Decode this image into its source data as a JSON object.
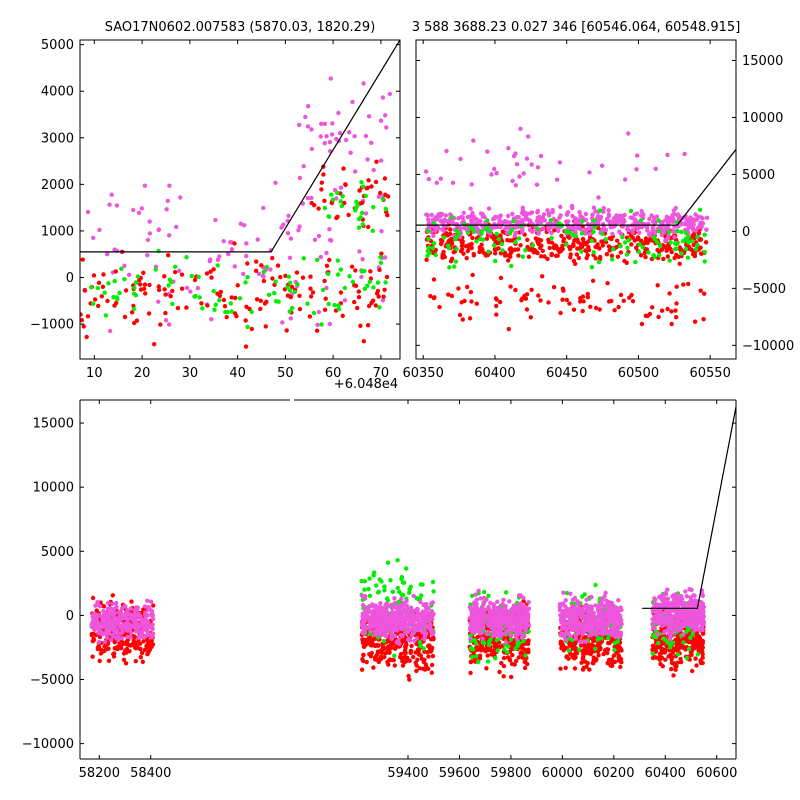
{
  "colors": {
    "red": "#ff0000",
    "green": "#00ee00",
    "magenta": "#ee55dd",
    "line": "#000000"
  },
  "chart_data": [
    {
      "id": "left",
      "type": "scatter",
      "title": "SAO17N0602.007583 (5870.03, 1820.29)",
      "xlim": [
        7,
        74
      ],
      "ylim": [
        -1750,
        5100
      ],
      "xticks": [
        10,
        20,
        30,
        40,
        50,
        60,
        70
      ],
      "yticks": [
        -1000,
        0,
        1000,
        2000,
        3000,
        4000,
        5000
      ],
      "x_offset_label": "+6.048e4",
      "model_line": [
        [
          7,
          550
        ],
        [
          47,
          550
        ],
        [
          74,
          5100
        ]
      ],
      "clusters": [
        {
          "color": "magenta",
          "n": 110,
          "xr": [
            7,
            72
          ],
          "yr": [
            -1700,
            2700
          ]
        },
        {
          "color": "red",
          "n": 150,
          "xr": [
            7,
            72
          ],
          "yr": [
            -1700,
            1000
          ]
        },
        {
          "color": "green",
          "n": 90,
          "xr": [
            7,
            72
          ],
          "yr": [
            -1200,
            800
          ]
        },
        {
          "color": "magenta",
          "n": 45,
          "xr": [
            52,
            72
          ],
          "yr": [
            1200,
            4900
          ]
        },
        {
          "color": "red",
          "n": 40,
          "xr": [
            55,
            72
          ],
          "yr": [
            800,
            2700
          ]
        },
        {
          "color": "green",
          "n": 25,
          "xr": [
            58,
            72
          ],
          "yr": [
            800,
            2200
          ]
        }
      ]
    },
    {
      "id": "right",
      "type": "scatter",
      "title": "3 588 3688.23 0.027 346 [60546.064, 60548.915]",
      "xlim": [
        60345,
        60568
      ],
      "ylim": [
        -11200,
        16800
      ],
      "xticks": [
        60350,
        60400,
        60450,
        60500,
        60550
      ],
      "yticks": [
        -10000,
        -5000,
        0,
        5000,
        10000,
        15000
      ],
      "model_line": [
        [
          60345,
          550
        ],
        [
          60527,
          550
        ],
        [
          60568,
          7200
        ]
      ],
      "clusters": [
        {
          "color": "red",
          "n": 420,
          "xr": [
            60352,
            60548
          ],
          "yr": [
            -3500,
            1200
          ]
        },
        {
          "color": "magenta",
          "n": 520,
          "xr": [
            60352,
            60548
          ],
          "yr": [
            -1000,
            2500
          ]
        },
        {
          "color": "green",
          "n": 130,
          "xr": [
            60352,
            60548
          ],
          "yr": [
            -4000,
            2500
          ]
        },
        {
          "color": "red",
          "n": 90,
          "xr": [
            60352,
            60548
          ],
          "yr": [
            -9500,
            -3000
          ]
        },
        {
          "color": "magenta",
          "n": 40,
          "xr": [
            60352,
            60548
          ],
          "yr": [
            2500,
            10000
          ]
        }
      ]
    },
    {
      "id": "bottom",
      "type": "scatter",
      "xlim": [
        58125,
        60675
      ],
      "ylim": [
        -11200,
        16800
      ],
      "xticks": [
        58200,
        58400,
        59400,
        59600,
        59800,
        60000,
        60200,
        60400,
        60600
      ],
      "yticks": [
        -10000,
        -5000,
        0,
        5000,
        10000,
        15000
      ],
      "model_line": [
        [
          60310,
          550
        ],
        [
          60525,
          550
        ],
        [
          60680,
          16800
        ]
      ],
      "clusters": [
        {
          "color": "red",
          "n": 260,
          "xr": [
            58170,
            58410
          ],
          "yr": [
            -4500,
            2000
          ]
        },
        {
          "color": "magenta",
          "n": 260,
          "xr": [
            58170,
            58410
          ],
          "yr": [
            -2500,
            1500
          ]
        },
        {
          "color": "red",
          "n": 320,
          "xr": [
            59220,
            59500
          ],
          "yr": [
            -5500,
            1500
          ]
        },
        {
          "color": "green",
          "n": 120,
          "xr": [
            59220,
            59500
          ],
          "yr": [
            -4000,
            5000
          ]
        },
        {
          "color": "magenta",
          "n": 420,
          "xr": [
            59220,
            59500
          ],
          "yr": [
            -2500,
            1800
          ]
        },
        {
          "color": "red",
          "n": 300,
          "xr": [
            59640,
            59870
          ],
          "yr": [
            -5000,
            1500
          ]
        },
        {
          "color": "green",
          "n": 100,
          "xr": [
            59640,
            59870
          ],
          "yr": [
            -5000,
            3000
          ]
        },
        {
          "color": "magenta",
          "n": 380,
          "xr": [
            59640,
            59870
          ],
          "yr": [
            -2500,
            2000
          ]
        },
        {
          "color": "red",
          "n": 300,
          "xr": [
            59990,
            60230
          ],
          "yr": [
            -5000,
            1500
          ]
        },
        {
          "color": "green",
          "n": 90,
          "xr": [
            59990,
            60230
          ],
          "yr": [
            -4000,
            3000
          ]
        },
        {
          "color": "magenta",
          "n": 360,
          "xr": [
            59990,
            60230
          ],
          "yr": [
            -2500,
            2000
          ]
        },
        {
          "color": "red",
          "n": 280,
          "xr": [
            60350,
            60550
          ],
          "yr": [
            -5000,
            1200
          ]
        },
        {
          "color": "green",
          "n": 80,
          "xr": [
            60350,
            60550
          ],
          "yr": [
            -4000,
            2500
          ]
        },
        {
          "color": "magenta",
          "n": 360,
          "xr": [
            60350,
            60550
          ],
          "yr": [
            -2000,
            2500
          ]
        }
      ]
    }
  ]
}
